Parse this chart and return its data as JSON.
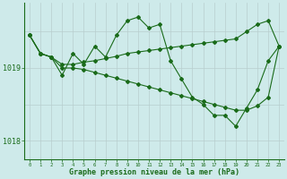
{
  "x": [
    0,
    1,
    2,
    3,
    4,
    5,
    6,
    7,
    8,
    9,
    10,
    11,
    12,
    13,
    14,
    15,
    16,
    17,
    18,
    19,
    20,
    21,
    22,
    23
  ],
  "main_line": [
    1019.45,
    1019.2,
    1019.15,
    1018.9,
    1019.2,
    1019.05,
    1019.3,
    1019.15,
    1019.45,
    1019.65,
    1019.7,
    1019.55,
    1019.6,
    1019.1,
    1018.85,
    1018.6,
    1018.5,
    1018.35,
    1018.35,
    1018.2,
    1018.45,
    1018.7,
    1019.1,
    1019.3
  ],
  "upper_line": [
    1019.45,
    1019.2,
    1019.15,
    1019.05,
    1019.05,
    1019.08,
    1019.1,
    1019.13,
    1019.16,
    1019.2,
    1019.22,
    1019.24,
    1019.26,
    1019.28,
    1019.3,
    1019.32,
    1019.34,
    1019.36,
    1019.38,
    1019.4,
    1019.5,
    1019.6,
    1019.65,
    1019.3
  ],
  "lower_line": [
    1019.45,
    1019.2,
    1019.15,
    1019.0,
    1019.0,
    1018.98,
    1018.94,
    1018.9,
    1018.86,
    1018.82,
    1018.78,
    1018.74,
    1018.7,
    1018.66,
    1018.62,
    1018.58,
    1018.54,
    1018.5,
    1018.46,
    1018.42,
    1018.42,
    1018.48,
    1018.6,
    1019.3
  ],
  "line_color": "#1a6b1a",
  "bg_color": "#ceeaea",
  "vline_color": "#b8cece",
  "xlabel": "Graphe pression niveau de la mer (hPa)",
  "yticks": [
    1018,
    1019
  ],
  "ylim": [
    1017.75,
    1019.9
  ],
  "xlim": [
    -0.5,
    23.5
  ]
}
